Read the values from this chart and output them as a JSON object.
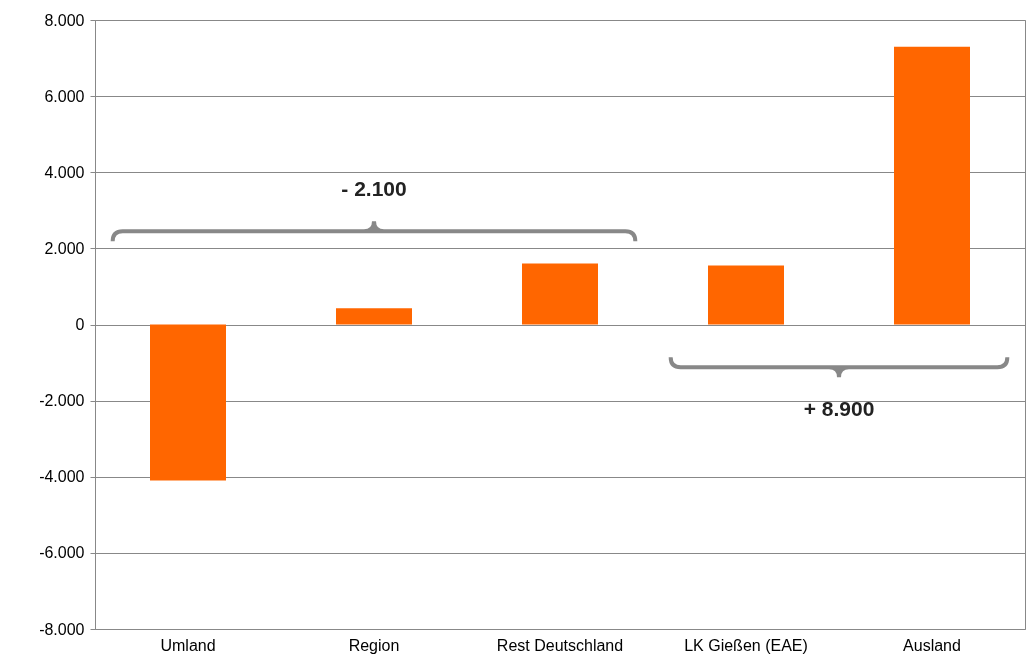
{
  "chart_data": {
    "type": "bar",
    "categories": [
      "Umland",
      "Region",
      "Rest Deutschland",
      "LK Gießen (EAE)",
      "Ausland"
    ],
    "values": [
      -4100,
      430,
      1600,
      1550,
      7300
    ],
    "color": "#ff6600",
    "ylim": [
      -8000,
      8000
    ],
    "yticks": [
      {
        "value": -8000,
        "label": "-8.000"
      },
      {
        "value": -6000,
        "label": "-6.000"
      },
      {
        "value": -4000,
        "label": "-4.000"
      },
      {
        "value": -2000,
        "label": "-2.000"
      },
      0,
      {
        "value": 2000,
        "label": "2.000"
      },
      {
        "value": 4000,
        "label": "4.000"
      },
      {
        "value": 6000,
        "label": "6.000"
      },
      {
        "value": 8000,
        "label": "8.000"
      }
    ],
    "grid": "y",
    "annotations": [
      "- 2.100",
      "+ 8.900"
    ]
  }
}
